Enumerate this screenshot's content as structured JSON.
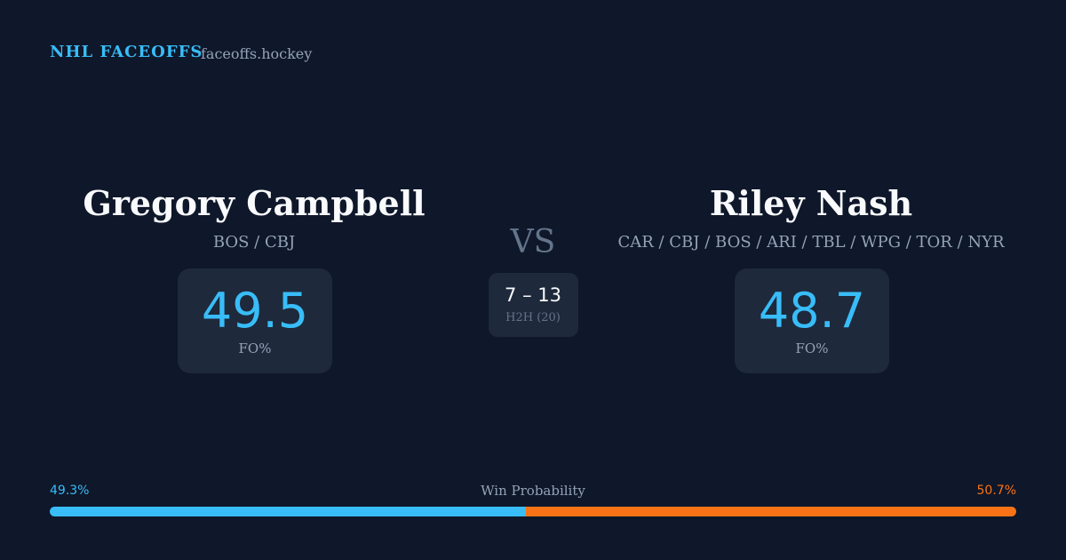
{
  "header": {
    "title": "NHL FACEOFFS",
    "site": "faceoffs.hockey"
  },
  "players": [
    {
      "name": "Gregory Campbell",
      "teams": "BOS / CBJ",
      "fo_pct": "49.5",
      "fo_label": "FO%"
    },
    {
      "name": "Riley Nash",
      "teams": "CAR / CBJ / BOS / ARI / TBL / WPG / TOR / NYR",
      "fo_pct": "48.7",
      "fo_label": "FO%"
    }
  ],
  "versus": "VS",
  "h2h": {
    "record": "7 – 13",
    "label": "H2H (20)"
  },
  "win_probability": {
    "title": "Win Probability",
    "left": {
      "value": 49.3,
      "label": "49.3%",
      "color": "#38bdf8"
    },
    "right": {
      "value": 50.7,
      "label": "50.7%",
      "color": "#f97316"
    }
  }
}
